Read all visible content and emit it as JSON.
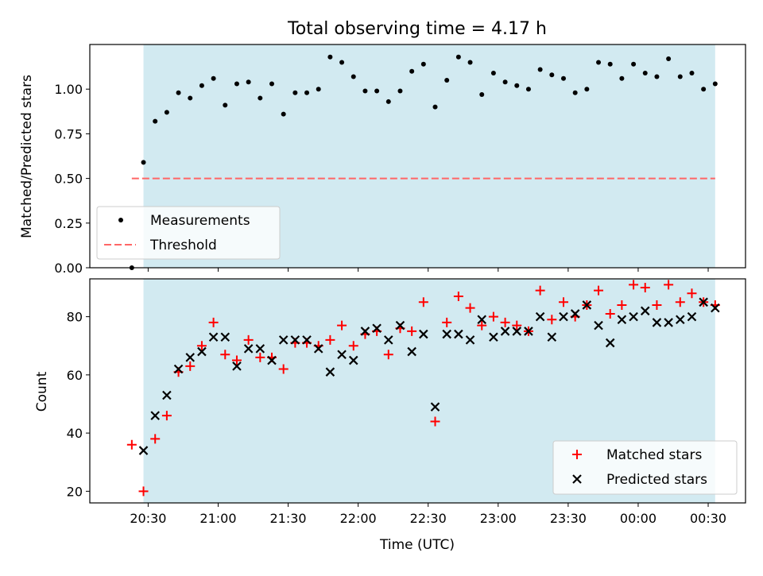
{
  "chart_data": [
    {
      "type": "scatter",
      "title": "Total observing time = 4.17 h",
      "ylabel": "Matched/Predicted stars",
      "ylim": [
        0,
        1.25
      ],
      "yticks": [
        0.0,
        0.25,
        0.5,
        0.75,
        1.0
      ],
      "ytick_labels": [
        "0.00",
        "0.25",
        "0.50",
        "0.75",
        "1.00"
      ],
      "xlim": [
        "20:05",
        "00:46"
      ],
      "shaded_span": [
        "20:28",
        "00:33"
      ],
      "shade_color": "#add8e6",
      "legend_position": "lower-left",
      "series": [
        {
          "name": "Measurements",
          "marker": "dot",
          "color": "#000000",
          "x": [
            "20:23",
            "20:28",
            "20:33",
            "20:38",
            "20:43",
            "20:48",
            "20:53",
            "20:58",
            "21:03",
            "21:08",
            "21:13",
            "21:18",
            "21:23",
            "21:28",
            "21:33",
            "21:38",
            "21:43",
            "21:48",
            "21:53",
            "21:58",
            "22:03",
            "22:08",
            "22:13",
            "22:18",
            "22:23",
            "22:28",
            "22:33",
            "22:38",
            "22:43",
            "22:48",
            "22:53",
            "22:58",
            "23:03",
            "23:08",
            "23:13",
            "23:18",
            "23:23",
            "23:28",
            "23:33",
            "23:38",
            "23:43",
            "23:48",
            "23:53",
            "23:58",
            "00:03",
            "00:08",
            "00:13",
            "00:18",
            "00:23",
            "00:28",
            "00:33"
          ],
          "y": [
            0.0,
            0.59,
            0.82,
            0.87,
            0.98,
            0.95,
            1.02,
            1.06,
            0.91,
            1.03,
            1.04,
            0.95,
            1.03,
            0.86,
            0.98,
            0.98,
            1.0,
            1.18,
            1.15,
            1.07,
            0.99,
            0.99,
            0.93,
            0.99,
            1.1,
            1.14,
            0.9,
            1.05,
            1.18,
            1.15,
            0.97,
            1.09,
            1.04,
            1.02,
            1.0,
            1.11,
            1.08,
            1.06,
            0.98,
            1.0,
            1.15,
            1.14,
            1.06,
            1.14,
            1.09,
            1.07,
            1.17,
            1.07,
            1.09,
            1.0,
            1.03
          ]
        },
        {
          "name": "Threshold",
          "marker": "dashed-line",
          "color": "#ff6666",
          "x": [
            "20:23",
            "00:33"
          ],
          "y": [
            0.5,
            0.5
          ]
        }
      ]
    },
    {
      "type": "scatter",
      "ylabel": "Count",
      "xlabel": "Time (UTC)",
      "ylim": [
        16,
        93
      ],
      "yticks": [
        20,
        40,
        60,
        80
      ],
      "xlim": [
        "20:05",
        "00:46"
      ],
      "xticks": [
        "20:30",
        "21:00",
        "21:30",
        "22:00",
        "22:30",
        "23:00",
        "23:30",
        "00:00",
        "00:30"
      ],
      "shaded_span": [
        "20:28",
        "00:33"
      ],
      "shade_color": "#add8e6",
      "legend_position": "lower-right",
      "series": [
        {
          "name": "Matched stars",
          "marker": "plus",
          "color": "#ff0000",
          "x": [
            "20:23",
            "20:28",
            "20:33",
            "20:38",
            "20:43",
            "20:48",
            "20:53",
            "20:58",
            "21:03",
            "21:08",
            "21:13",
            "21:18",
            "21:23",
            "21:28",
            "21:33",
            "21:38",
            "21:43",
            "21:48",
            "21:53",
            "21:58",
            "22:03",
            "22:08",
            "22:13",
            "22:18",
            "22:23",
            "22:28",
            "22:33",
            "22:38",
            "22:43",
            "22:48",
            "22:53",
            "22:58",
            "23:03",
            "23:08",
            "23:13",
            "23:18",
            "23:23",
            "23:28",
            "23:33",
            "23:38",
            "23:43",
            "23:48",
            "23:53",
            "23:58",
            "00:03",
            "00:08",
            "00:13",
            "00:18",
            "00:23",
            "00:28",
            "00:33"
          ],
          "y": [
            36,
            20,
            38,
            46,
            61,
            63,
            70,
            78,
            67,
            65,
            72,
            66,
            66,
            62,
            71,
            71,
            70,
            72,
            77,
            70,
            74,
            75,
            67,
            76,
            75,
            85,
            44,
            78,
            87,
            83,
            77,
            80,
            78,
            77,
            75,
            89,
            79,
            85,
            80,
            84,
            89,
            81,
            84,
            91,
            90,
            84,
            91,
            85,
            88,
            85,
            84
          ]
        },
        {
          "name": "Predicted stars",
          "marker": "x",
          "color": "#000000",
          "x": [
            "20:28",
            "20:33",
            "20:38",
            "20:43",
            "20:48",
            "20:53",
            "20:58",
            "21:03",
            "21:08",
            "21:13",
            "21:18",
            "21:23",
            "21:28",
            "21:33",
            "21:38",
            "21:43",
            "21:48",
            "21:53",
            "21:58",
            "22:03",
            "22:08",
            "22:13",
            "22:18",
            "22:23",
            "22:28",
            "22:33",
            "22:38",
            "22:43",
            "22:48",
            "22:53",
            "22:58",
            "23:03",
            "23:08",
            "23:13",
            "23:18",
            "23:23",
            "23:28",
            "23:33",
            "23:38",
            "23:43",
            "23:48",
            "23:53",
            "23:58",
            "00:03",
            "00:08",
            "00:13",
            "00:18",
            "00:23",
            "00:28",
            "00:33"
          ],
          "y": [
            34,
            46,
            53,
            62,
            66,
            68,
            73,
            73,
            63,
            69,
            69,
            65,
            72,
            72,
            72,
            69,
            61,
            67,
            65,
            75,
            76,
            72,
            77,
            68,
            74,
            49,
            74,
            74,
            72,
            79,
            73,
            75,
            75,
            75,
            80,
            73,
            80,
            81,
            84,
            77,
            71,
            79,
            80,
            82,
            78,
            78,
            79,
            80,
            85,
            83
          ]
        }
      ]
    }
  ]
}
